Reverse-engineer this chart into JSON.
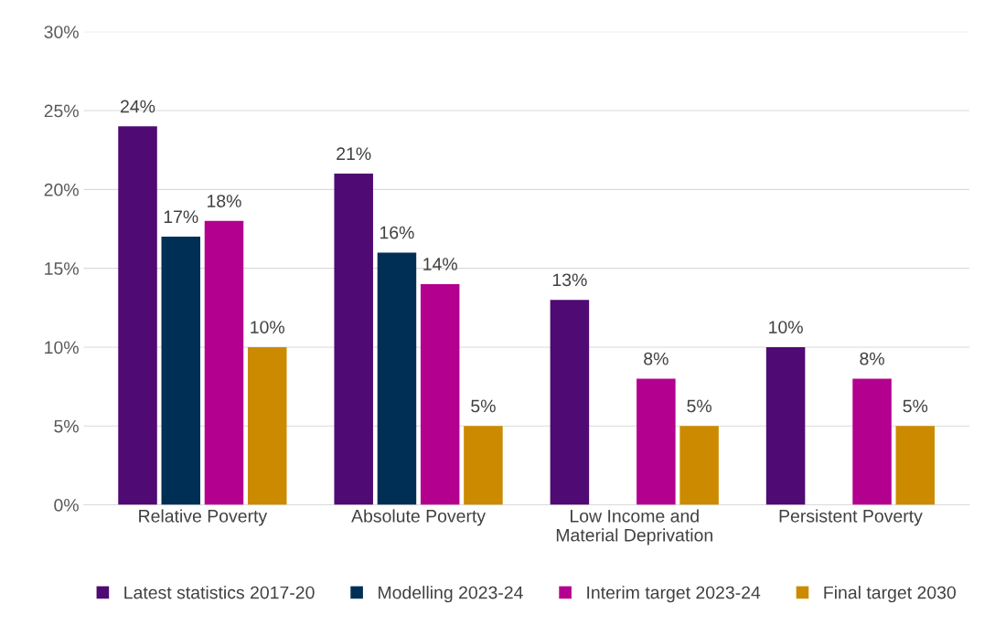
{
  "chart_data": {
    "type": "bar",
    "categories": [
      "Relative Poverty",
      "Absolute Poverty",
      "Low Income and\nMaterial Deprivation",
      "Persistent Poverty"
    ],
    "series": [
      {
        "name": "Latest statistics 2017-20",
        "color": "#4f0a73",
        "values": [
          24,
          21,
          13,
          10
        ],
        "value_labels": [
          "24%",
          "21%",
          "13%",
          "10%"
        ]
      },
      {
        "name": "Modelling 2023-24",
        "color": "#002f56",
        "values": [
          17,
          16,
          null,
          null
        ],
        "value_labels": [
          "17%",
          "16%",
          null,
          null
        ]
      },
      {
        "name": "Interim target 2023-24",
        "color": "#b3008f",
        "values": [
          18,
          14,
          8,
          8
        ],
        "value_labels": [
          "18%",
          "14%",
          "8%",
          "8%"
        ]
      },
      {
        "name": "Final target 2030",
        "color": "#cc8a00",
        "values": [
          10,
          5,
          5,
          5
        ],
        "value_labels": [
          "10%",
          "5%",
          "5%",
          "5%"
        ]
      }
    ],
    "ylim": [
      0,
      30
    ],
    "yticks": [
      {
        "value": 0,
        "label": "0%"
      },
      {
        "value": 5,
        "label": "5%"
      },
      {
        "value": 10,
        "label": "10%"
      },
      {
        "value": 15,
        "label": "15%"
      },
      {
        "value": 20,
        "label": "20%"
      },
      {
        "value": 25,
        "label": "25%"
      },
      {
        "value": 30,
        "label": "30%"
      }
    ],
    "grid": "y",
    "legend": "bottom"
  }
}
